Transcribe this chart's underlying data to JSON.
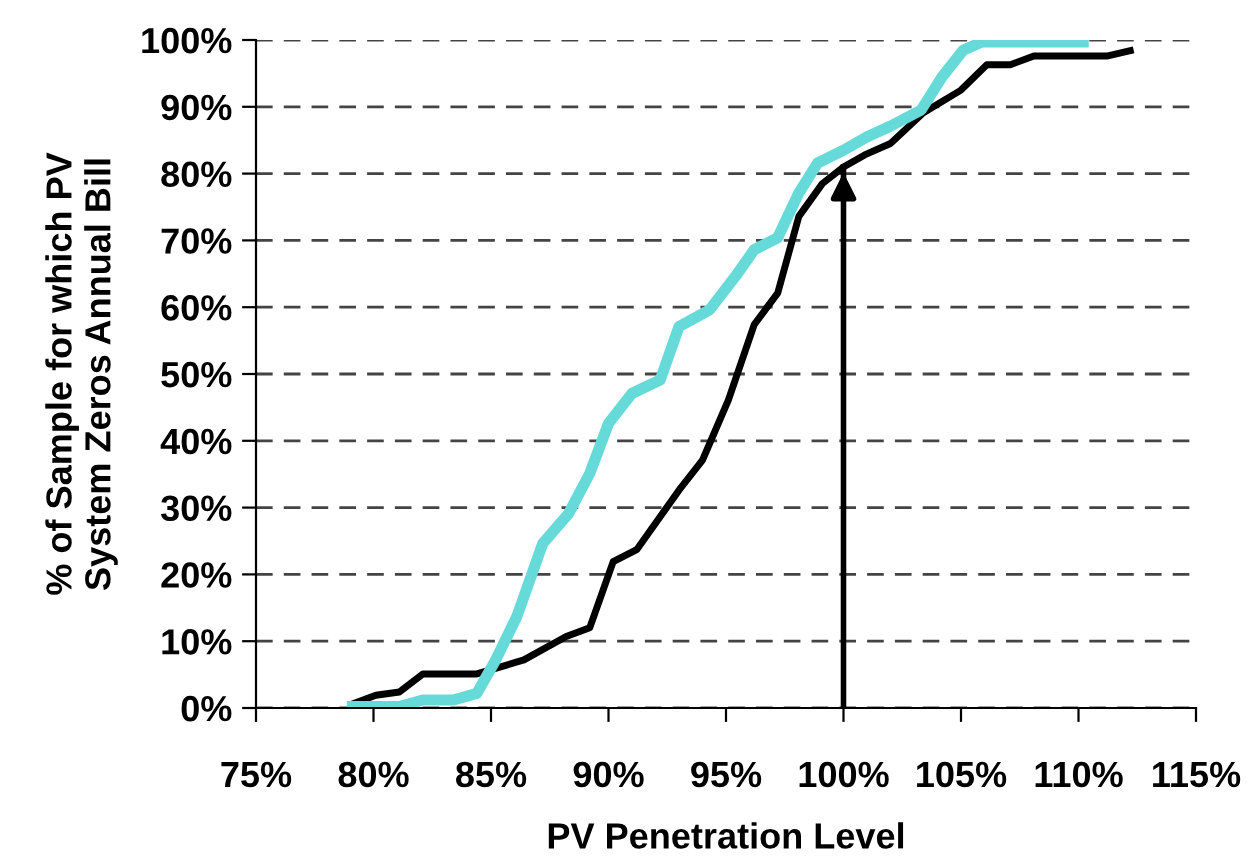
{
  "chart_data": {
    "type": "line",
    "xlabel": "PV Penetration Level",
    "ylabel": "% of Sample for which PV\nSystem Zeros Annual Bill",
    "series": [
      {
        "color": "#000000",
        "x": [
          79.1,
          80.1,
          81.1,
          82.1,
          84.4,
          86.4,
          88.2,
          89.2,
          90.2,
          91.2,
          93.0,
          94.0,
          95.1,
          96.2,
          97.2,
          98.1,
          99.1,
          100,
          100.9,
          102,
          103.4,
          105,
          106.1,
          107.1,
          108.1,
          111.2,
          112.2
        ],
        "values": [
          0.6,
          1.9,
          2.4,
          5.1,
          5.1,
          7.2,
          10.7,
          12,
          21.9,
          23.7,
          32.6,
          37.1,
          46.1,
          57.4,
          62.1,
          73.6,
          78.5,
          81,
          82.8,
          84.5,
          89.1,
          92.5,
          96.3,
          96.3,
          97.6,
          97.6,
          98.4
        ]
      },
      {
        "color": "#66d9d9",
        "x": [
          79.1,
          81.1,
          82.1,
          83.4,
          84.4,
          85.2,
          86.1,
          87.2,
          88.3,
          89.2,
          90.0,
          91.0,
          92.2,
          93.0,
          94.3,
          95.4,
          96.2,
          97.2,
          98.1,
          98.9,
          100,
          101,
          102,
          103.3,
          104.2,
          105.1,
          105.9,
          110.2
        ],
        "values": [
          0.2,
          0.2,
          1.2,
          1.2,
          2.2,
          7.2,
          13.7,
          24.6,
          29.1,
          35.1,
          42.6,
          47.1,
          49.1,
          57.1,
          59.6,
          64.6,
          68.6,
          70.4,
          77.1,
          81.6,
          83.5,
          85.5,
          87.1,
          89.5,
          94.5,
          98.5,
          99.7,
          99.7
        ]
      }
    ],
    "xlim": [
      75,
      115
    ],
    "xticks": [
      {
        "value": 75,
        "label": "75%"
      },
      {
        "value": 80,
        "label": "80%"
      },
      {
        "value": 85,
        "label": "85%"
      },
      {
        "value": 90,
        "label": "90%"
      },
      {
        "value": 95,
        "label": "95%"
      },
      {
        "value": 100,
        "label": "100%"
      },
      {
        "value": 105,
        "label": "105%"
      },
      {
        "value": 110,
        "label": "110%"
      },
      {
        "value": 115,
        "label": "115%"
      }
    ],
    "ylim": [
      0,
      100
    ],
    "yticks": [
      {
        "value": 0,
        "label": "0%"
      },
      {
        "value": 10,
        "label": "10%"
      },
      {
        "value": 20,
        "label": "20%"
      },
      {
        "value": 30,
        "label": "30%"
      },
      {
        "value": 40,
        "label": "40%"
      },
      {
        "value": 50,
        "label": "50%"
      },
      {
        "value": 60,
        "label": "60%"
      },
      {
        "value": 70,
        "label": "70%"
      },
      {
        "value": 80,
        "label": "80%"
      },
      {
        "value": 90,
        "label": "90%"
      },
      {
        "value": 100,
        "label": "100%"
      }
    ],
    "grid": "y",
    "ref_lines": [
      {
        "axis": "x",
        "value": 100
      }
    ]
  }
}
